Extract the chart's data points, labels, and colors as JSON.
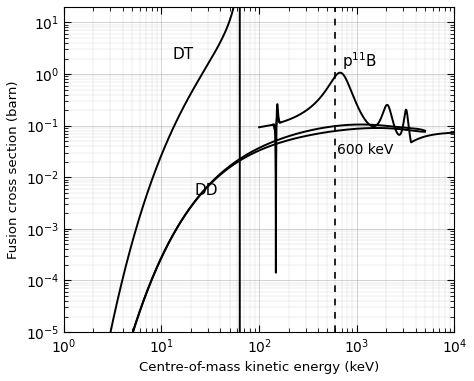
{
  "xlabel": "Centre-of-mass kinetic energy (keV)",
  "ylabel": "Fusion cross section (barn)",
  "xlim": [
    1,
    10000
  ],
  "ylim": [
    1e-05,
    20
  ],
  "vline_x": 600,
  "vline_label": "600 keV",
  "label_DT": "DT",
  "label_DD": "DD",
  "label_pB": "p$^{11}$B",
  "line_color": "#000000",
  "background_color": "#ffffff",
  "grid_color": "#b0b0b0",
  "lw": 1.4
}
